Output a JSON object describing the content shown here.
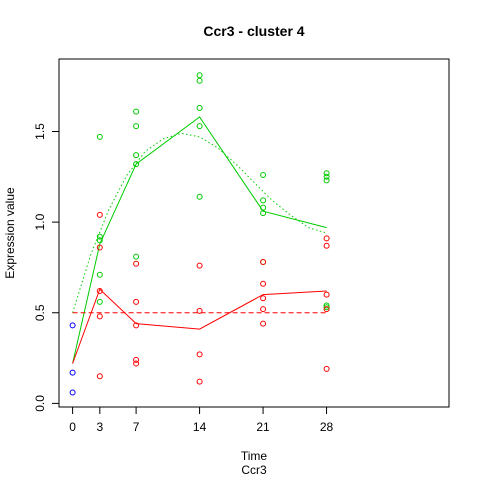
{
  "chart_data": {
    "type": "scatter",
    "title": "Ccr3 - cluster 4",
    "xlabel": "Time",
    "xsublabel": "Ccr3",
    "ylabel": "Expression value",
    "xlim": [
      -1.5,
      41.5
    ],
    "ylim": [
      -0.02,
      1.9
    ],
    "xticks": [
      0,
      3,
      7,
      14,
      21,
      28
    ],
    "yticks": [
      0.0,
      0.5,
      1.0,
      1.5
    ],
    "ytick_labels": [
      "0.0",
      "0.5",
      "1.0",
      "1.5"
    ],
    "colors": {
      "baseline": "#0000ff",
      "red_series": "#ff0000",
      "green_series": "#00cc00"
    },
    "points": {
      "baseline": [
        {
          "x": 0,
          "y": 0.43
        },
        {
          "x": 0,
          "y": 0.17
        },
        {
          "x": 0,
          "y": 0.06
        }
      ],
      "green": [
        {
          "x": 3,
          "y": 1.47
        },
        {
          "x": 3,
          "y": 0.92
        },
        {
          "x": 3,
          "y": 0.9
        },
        {
          "x": 3,
          "y": 0.71
        },
        {
          "x": 3,
          "y": 0.56
        },
        {
          "x": 7,
          "y": 1.61
        },
        {
          "x": 7,
          "y": 1.53
        },
        {
          "x": 7,
          "y": 1.37
        },
        {
          "x": 7,
          "y": 1.32
        },
        {
          "x": 7,
          "y": 0.81
        },
        {
          "x": 14,
          "y": 1.81
        },
        {
          "x": 14,
          "y": 1.78
        },
        {
          "x": 14,
          "y": 1.63
        },
        {
          "x": 14,
          "y": 1.53
        },
        {
          "x": 14,
          "y": 1.14
        },
        {
          "x": 21,
          "y": 1.26
        },
        {
          "x": 21,
          "y": 1.12
        },
        {
          "x": 21,
          "y": 1.08
        },
        {
          "x": 21,
          "y": 1.05
        },
        {
          "x": 21,
          "y": 0.78
        },
        {
          "x": 28,
          "y": 1.27
        },
        {
          "x": 28,
          "y": 1.25
        },
        {
          "x": 28,
          "y": 1.23
        },
        {
          "x": 28,
          "y": 0.54
        },
        {
          "x": 28,
          "y": 0.53
        }
      ],
      "red": [
        {
          "x": 3,
          "y": 1.04
        },
        {
          "x": 3,
          "y": 0.86
        },
        {
          "x": 3,
          "y": 0.62
        },
        {
          "x": 3,
          "y": 0.48
        },
        {
          "x": 3,
          "y": 0.15
        },
        {
          "x": 7,
          "y": 0.77
        },
        {
          "x": 7,
          "y": 0.56
        },
        {
          "x": 7,
          "y": 0.43
        },
        {
          "x": 7,
          "y": 0.24
        },
        {
          "x": 7,
          "y": 0.22
        },
        {
          "x": 14,
          "y": 0.76
        },
        {
          "x": 14,
          "y": 0.51
        },
        {
          "x": 14,
          "y": 0.27
        },
        {
          "x": 14,
          "y": 0.12
        },
        {
          "x": 21,
          "y": 0.78
        },
        {
          "x": 21,
          "y": 0.66
        },
        {
          "x": 21,
          "y": 0.58
        },
        {
          "x": 21,
          "y": 0.52
        },
        {
          "x": 21,
          "y": 0.44
        },
        {
          "x": 28,
          "y": 0.91
        },
        {
          "x": 28,
          "y": 0.87
        },
        {
          "x": 28,
          "y": 0.6
        },
        {
          "x": 28,
          "y": 0.52
        },
        {
          "x": 28,
          "y": 0.19
        }
      ]
    },
    "series": [
      {
        "color_key": "green_series",
        "style": "solid",
        "x": [
          0,
          3,
          7,
          14,
          21,
          28
        ],
        "y": [
          0.22,
          0.88,
          1.32,
          1.58,
          1.06,
          0.97
        ]
      },
      {
        "color_key": "green_series",
        "style": "dotted",
        "x": [
          0,
          2,
          4,
          6,
          8,
          10,
          12,
          14,
          16,
          18,
          20,
          22,
          24,
          26,
          28
        ],
        "y": [
          0.5,
          0.82,
          1.07,
          1.26,
          1.39,
          1.46,
          1.49,
          1.47,
          1.41,
          1.32,
          1.22,
          1.12,
          1.04,
          0.97,
          0.94
        ]
      },
      {
        "color_key": "red_series",
        "style": "solid",
        "x": [
          0,
          3,
          7,
          14,
          21,
          28
        ],
        "y": [
          0.22,
          0.63,
          0.44,
          0.41,
          0.6,
          0.62
        ]
      },
      {
        "color_key": "red_series",
        "style": "dashed",
        "x": [
          0,
          28
        ],
        "y": [
          0.5,
          0.5
        ]
      }
    ]
  }
}
